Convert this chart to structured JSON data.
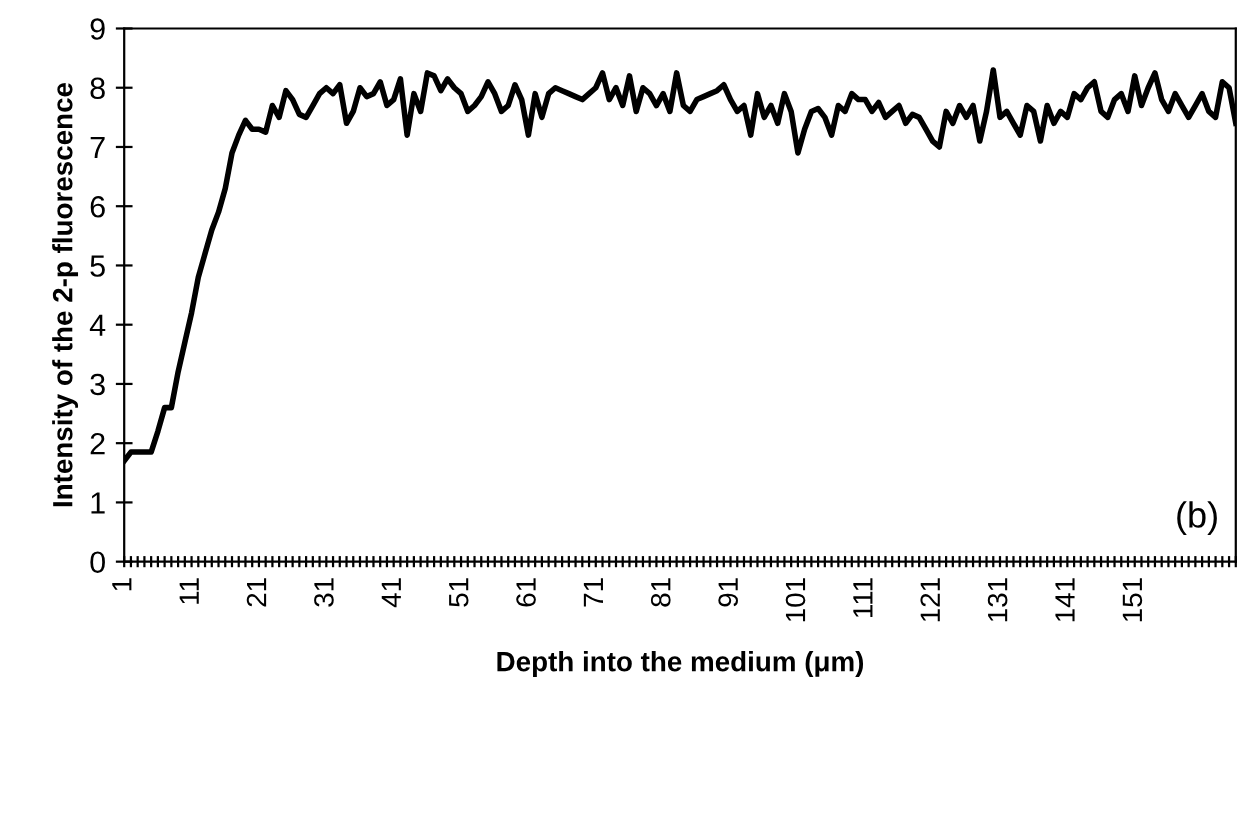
{
  "chart_data": {
    "type": "line",
    "xlabel": "Depth into the medium (μm)",
    "ylabel": "Intensity of the 2-p fluorescence",
    "categories": [
      "1",
      null,
      null,
      null,
      null,
      null,
      null,
      null,
      null,
      null,
      "11",
      null,
      null,
      null,
      null,
      null,
      null,
      null,
      null,
      null,
      "21",
      null,
      null,
      null,
      null,
      null,
      null,
      null,
      null,
      null,
      "31",
      null,
      null,
      null,
      null,
      null,
      null,
      null,
      null,
      null,
      "41",
      null,
      null,
      null,
      null,
      null,
      null,
      null,
      null,
      null,
      "51",
      null,
      null,
      null,
      null,
      null,
      null,
      null,
      null,
      null,
      "61",
      null,
      null,
      null,
      null,
      null,
      null,
      null,
      null,
      null,
      "71",
      null,
      null,
      null,
      null,
      null,
      null,
      null,
      null,
      null,
      "81",
      null,
      null,
      null,
      null,
      null,
      null,
      null,
      null,
      null,
      "91",
      null,
      null,
      null,
      null,
      null,
      null,
      null,
      null,
      null,
      "101",
      null,
      null,
      null,
      null,
      null,
      null,
      null,
      null,
      null,
      "111",
      null,
      null,
      null,
      null,
      null,
      null,
      null,
      null,
      null,
      "121",
      null,
      null,
      null,
      null,
      null,
      null,
      null,
      null,
      null,
      "131",
      null,
      null,
      null,
      null,
      null,
      null,
      null,
      null,
      null,
      "141",
      null,
      null,
      null,
      null,
      null,
      null,
      null,
      null,
      null,
      "151",
      null,
      null,
      null,
      null,
      null,
      null,
      null,
      null,
      null,
      null,
      null,
      null,
      null,
      null,
      null
    ],
    "series": [
      {
        "color": "#000000",
        "values": [
          1.7,
          1.85,
          1.85,
          1.85,
          1.85,
          2.2,
          2.6,
          2.6,
          3.2,
          3.7,
          4.2,
          4.8,
          5.2,
          5.6,
          5.9,
          6.3,
          6.9,
          7.2,
          7.45,
          7.3,
          7.3,
          7.25,
          7.7,
          7.5,
          7.95,
          7.8,
          7.55,
          7.5,
          7.7,
          7.9,
          8.0,
          7.9,
          8.05,
          7.4,
          7.6,
          8.0,
          7.85,
          7.9,
          8.1,
          7.7,
          7.8,
          8.15,
          7.2,
          7.9,
          7.6,
          8.25,
          8.2,
          7.95,
          8.15,
          8.0,
          7.9,
          7.6,
          7.7,
          7.85,
          8.1,
          7.9,
          7.6,
          7.7,
          8.05,
          7.8,
          7.2,
          7.9,
          7.5,
          7.9,
          8.0,
          7.95,
          7.9,
          7.85,
          7.8,
          7.9,
          8.0,
          8.25,
          7.8,
          8.0,
          7.7,
          8.2,
          7.6,
          8.0,
          7.9,
          7.7,
          7.9,
          7.6,
          8.25,
          7.7,
          7.6,
          7.8,
          7.85,
          7.9,
          7.95,
          8.05,
          7.8,
          7.6,
          7.7,
          7.2,
          7.9,
          7.5,
          7.7,
          7.4,
          7.9,
          7.6,
          6.9,
          7.3,
          7.6,
          7.65,
          7.5,
          7.2,
          7.7,
          7.6,
          7.9,
          7.8,
          7.8,
          7.6,
          7.75,
          7.5,
          7.6,
          7.7,
          7.4,
          7.55,
          7.5,
          7.3,
          7.1,
          7.0,
          7.6,
          7.4,
          7.7,
          7.5,
          7.7,
          7.1,
          7.6,
          8.3,
          7.5,
          7.6,
          7.4,
          7.2,
          7.7,
          7.6,
          7.1,
          7.7,
          7.4,
          7.6,
          7.5,
          7.9,
          7.8,
          8.0,
          8.1,
          7.6,
          7.5,
          7.8,
          7.9,
          7.6,
          8.2,
          7.7,
          8.0,
          8.25,
          7.8,
          7.6,
          7.9,
          7.7,
          7.5,
          7.7,
          7.9,
          7.6,
          7.5,
          8.1,
          8.0,
          7.4
        ]
      }
    ],
    "ylim": [
      0,
      9
    ],
    "yticks": [
      0,
      1,
      2,
      3,
      4,
      5,
      6,
      7,
      8,
      9
    ],
    "grid": false,
    "annotations": [
      "(b)"
    ]
  }
}
